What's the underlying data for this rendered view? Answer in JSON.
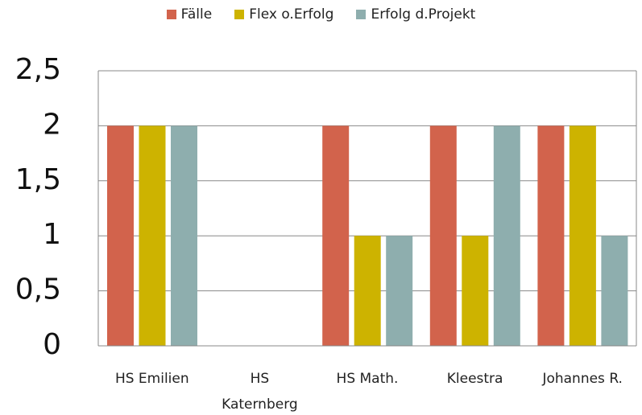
{
  "chart_data": {
    "type": "bar",
    "categories": [
      "HS Emilien",
      "HS Katernberg",
      "HS Math.",
      "Kleestra",
      "Johannes R."
    ],
    "series": [
      {
        "name": "Fälle",
        "color": "#d2634c",
        "values": [
          2,
          0,
          2,
          2,
          2
        ]
      },
      {
        "name": "Flex o.Erfolg",
        "color": "#cdb300",
        "values": [
          2,
          0,
          1,
          1,
          2
        ]
      },
      {
        "name": "Erfolg d.Projekt",
        "color": "#8eaeae",
        "values": [
          2,
          0,
          1,
          2,
          1
        ]
      }
    ],
    "ylim": [
      0,
      2.5
    ],
    "yticks": [
      0,
      {
        "value": 0.5,
        "label": "0,5"
      },
      1,
      {
        "value": 1.5,
        "label": "1,5"
      },
      2,
      {
        "value": 2.5,
        "label": "2,5"
      }
    ],
    "grid": true,
    "legend": "top"
  }
}
